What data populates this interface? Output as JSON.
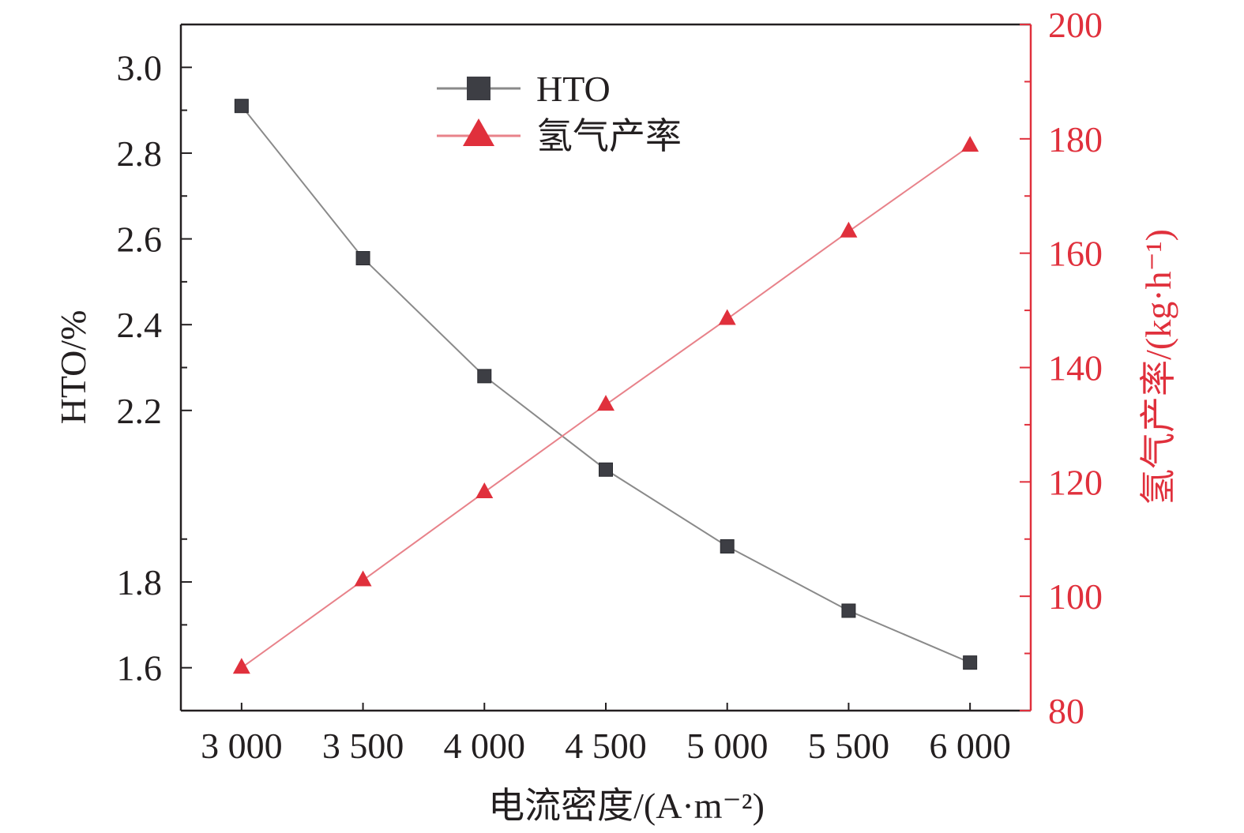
{
  "chart_data": {
    "type": "line",
    "xlabel": "电流密度/(A·m⁻²)",
    "ylabel_left": "HTO/%",
    "ylabel_right": "氢气产率/(kg·h⁻¹)",
    "x": [
      3000,
      3500,
      4000,
      4500,
      5000,
      5500,
      6000
    ],
    "x_tick_labels": [
      "3 000",
      "3 500",
      "4 000",
      "4 500",
      "5 000",
      "5 500",
      "6 000"
    ],
    "xlim": [
      2750,
      6250
    ],
    "left_axis": {
      "ylim": [
        1.5,
        3.1
      ],
      "major_ticks": [
        1.6,
        1.8,
        2.2,
        2.4,
        2.6,
        2.8,
        3.0
      ],
      "tick_labels": [
        "1.6",
        "1.8",
        "2.2",
        "2.4",
        "2.6",
        "2.8",
        "3.0"
      ],
      "minor_ticks": [
        1.7,
        1.9,
        2.3,
        2.5,
        2.7,
        2.9
      ]
    },
    "right_axis": {
      "ylim": [
        80,
        200
      ],
      "ticks": [
        80,
        100,
        120,
        140,
        160,
        180,
        200
      ],
      "tick_labels": [
        "80",
        "100",
        "120",
        "140",
        "160",
        "180",
        "200"
      ],
      "minor_ticks": [
        90,
        110,
        130,
        150,
        170,
        190
      ],
      "color": "#e0303c"
    },
    "series": [
      {
        "name": "HTO",
        "axis": "left",
        "marker": "square",
        "color": "#3d3e44",
        "line_color": "#8a8a8a",
        "values": [
          2.91,
          2.555,
          2.28,
          2.062,
          1.883,
          1.733,
          1.612
        ]
      },
      {
        "name": "氢气产率",
        "axis": "right",
        "marker": "triangle",
        "color": "#e0303c",
        "line_color": "#e8828a",
        "values": [
          87.5,
          102.8,
          118.2,
          133.5,
          148.5,
          163.8,
          178.8
        ]
      }
    ],
    "legend": {
      "position": "top-center",
      "entries": [
        "HTO",
        "氢气产率"
      ]
    },
    "grid": false
  }
}
